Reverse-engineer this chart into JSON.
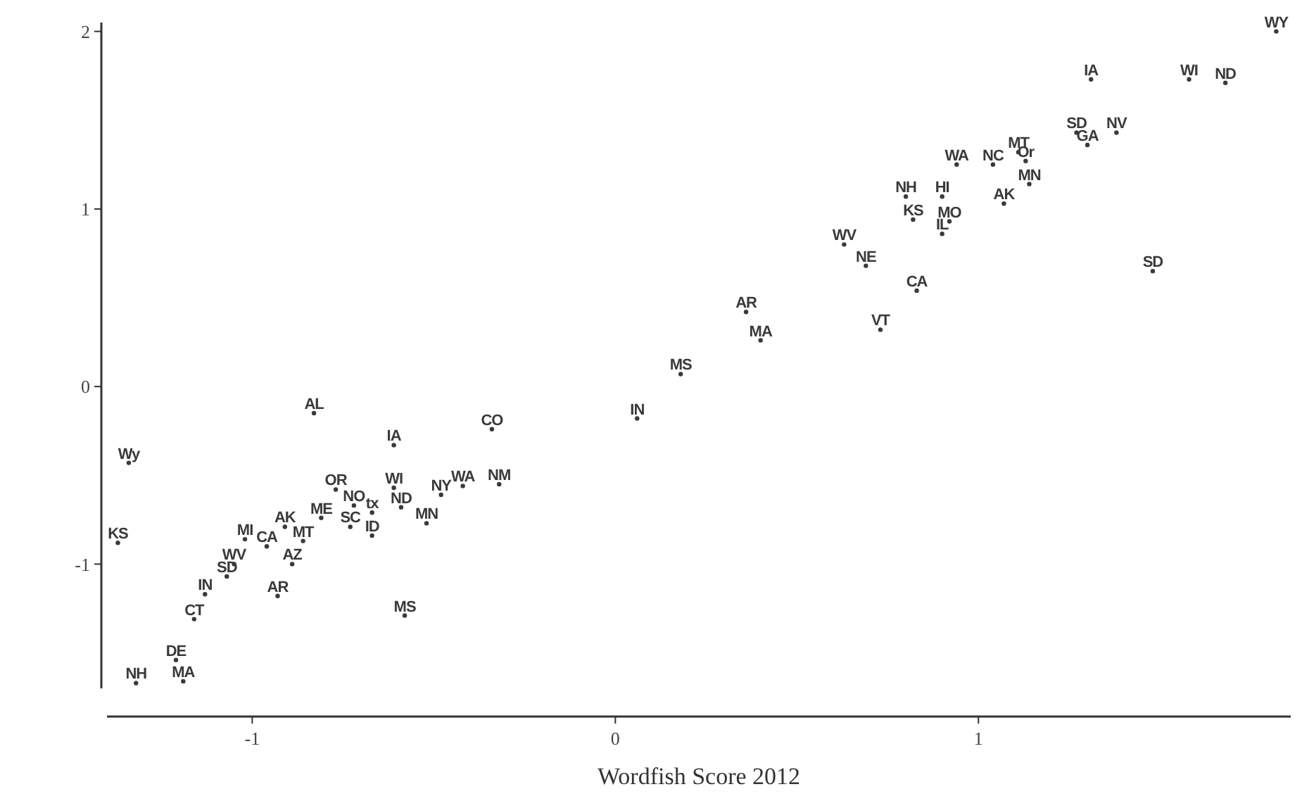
{
  "chart_data": {
    "type": "scatter",
    "xlabel": "Wordfish Score 2012",
    "xlim": [
      -1.4,
      1.86
    ],
    "ylim": [
      -1.7,
      2.05
    ],
    "xticks": [
      -1,
      0,
      1
    ],
    "yticks": [
      -1,
      0,
      1,
      2
    ],
    "grid": false,
    "marker": "circle",
    "series": [
      {
        "color": "#3a3a3a",
        "x": [
          -0.83,
          -0.34,
          -0.61,
          -1.34,
          -0.77,
          -0.61,
          -0.42,
          -0.32,
          -0.48,
          -0.59,
          -0.72,
          -0.67,
          -0.81,
          -0.73,
          -0.52,
          -0.67,
          -1.02,
          -0.91,
          -0.96,
          -0.86,
          -0.89,
          -1.37,
          -1.05,
          -1.07,
          -1.13,
          -0.93,
          -0.58,
          -1.16,
          -1.21,
          -1.19,
          -1.32,
          0.69,
          0.83,
          0.36,
          0.4,
          0.73,
          0.18,
          0.06,
          1.82,
          1.31,
          1.58,
          1.68,
          1.27,
          1.38,
          1.3,
          0.94,
          1.04,
          1.11,
          1.13,
          1.14,
          1.07,
          0.8,
          0.9,
          0.82,
          0.92,
          0.9,
          0.63,
          1.48
        ],
        "values": [
          -0.15,
          -0.24,
          -0.33,
          -0.43,
          -0.58,
          -0.57,
          -0.56,
          -0.55,
          -0.61,
          -0.68,
          -0.67,
          -0.71,
          -0.74,
          -0.79,
          -0.77,
          -0.84,
          -0.86,
          -0.79,
          -0.9,
          -0.87,
          -1.0,
          -0.88,
          -1.0,
          -1.07,
          -1.17,
          -1.18,
          -1.29,
          -1.31,
          -1.54,
          -1.66,
          -1.67,
          0.68,
          0.54,
          0.42,
          0.26,
          0.32,
          0.07,
          -0.18,
          2.0,
          1.73,
          1.73,
          1.71,
          1.43,
          1.43,
          1.36,
          1.25,
          1.25,
          1.32,
          1.27,
          1.14,
          1.03,
          1.07,
          1.07,
          0.94,
          0.93,
          0.86,
          0.8,
          0.65
        ],
        "value_labels": [
          "AL",
          "CO",
          "IA",
          "Wy",
          "OR",
          "WI",
          "WA",
          "NM",
          "NY",
          "ND",
          "NO",
          "tx",
          "ME",
          "SC",
          "MN",
          "ID",
          "MI",
          "AK",
          "CA",
          "MT",
          "AZ",
          "KS",
          "WV",
          "SD",
          "IN",
          "AR",
          "MS",
          "CT",
          "DE",
          "MA",
          "NH",
          "NE",
          "CA",
          "AR",
          "MA",
          "VT",
          "MS",
          "IN",
          "WY",
          "IA",
          "WI",
          "ND",
          "SD",
          "NV",
          "GA",
          "WA",
          "NC",
          "MT",
          "Or",
          "MN",
          "AK",
          "NH",
          "HI",
          "KS",
          "MO",
          "IL",
          "WV",
          "SD"
        ]
      }
    ]
  }
}
